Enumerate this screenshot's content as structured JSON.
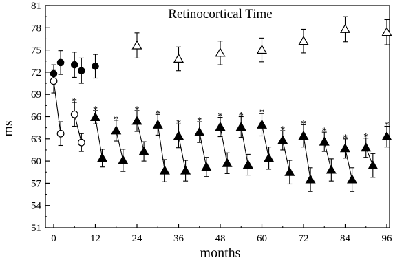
{
  "chart_data": {
    "type": "scatter",
    "title": "Retinocortical Time",
    "xlabel": "months",
    "ylabel": "ms",
    "xlim": [
      -1,
      97
    ],
    "ylim": [
      51,
      81
    ],
    "x_ticks": [
      0,
      12,
      24,
      36,
      48,
      60,
      72,
      84,
      96
    ],
    "y_ticks": [
      51,
      54,
      57,
      60,
      63,
      66,
      69,
      72,
      75,
      78,
      81
    ],
    "grid": false,
    "series": [
      {
        "marker": "filled-circle",
        "points": [
          {
            "x": 0,
            "y": 71.8,
            "err": 1.2
          },
          {
            "x": 2,
            "y": 73.3,
            "err": 1.6
          },
          {
            "x": 6,
            "y": 73.0,
            "err": 1.7
          },
          {
            "x": 8,
            "y": 72.2,
            "err": 1.7
          },
          {
            "x": 12,
            "y": 72.8,
            "err": 1.6
          }
        ]
      },
      {
        "marker": "open-circle",
        "connected": "pairs",
        "points": [
          {
            "x": 0,
            "y": 70.8,
            "err": 1.6
          },
          {
            "x": 2,
            "y": 63.7,
            "err": 1.6
          },
          {
            "x": 6,
            "y": 66.3,
            "err": 1.6
          },
          {
            "x": 8,
            "y": 62.5,
            "err": 1.2
          }
        ]
      },
      {
        "marker": "open-triangle",
        "points": [
          {
            "x": 24,
            "y": 75.6,
            "err": 1.7
          },
          {
            "x": 36,
            "y": 73.8,
            "err": 1.6
          },
          {
            "x": 48,
            "y": 74.6,
            "err": 1.6
          },
          {
            "x": 60,
            "y": 75.0,
            "err": 1.6
          },
          {
            "x": 72,
            "y": 76.2,
            "err": 1.6
          },
          {
            "x": 84,
            "y": 77.8,
            "err": 1.7
          },
          {
            "x": 96,
            "y": 77.4,
            "err": 1.7
          }
        ]
      },
      {
        "marker": "filled-triangle",
        "connected": "pairs",
        "points": [
          {
            "x": 12,
            "y": 65.9,
            "err": 0.9
          },
          {
            "x": 14,
            "y": 60.4,
            "err": 1.2
          },
          {
            "x": 18,
            "y": 64.1,
            "err": 1.4
          },
          {
            "x": 20,
            "y": 60.1,
            "err": 1.5
          },
          {
            "x": 24,
            "y": 65.4,
            "err": 1.4
          },
          {
            "x": 26,
            "y": 61.3,
            "err": 1.3
          },
          {
            "x": 30,
            "y": 64.9,
            "err": 1.4
          },
          {
            "x": 32,
            "y": 58.7,
            "err": 1.5
          },
          {
            "x": 36,
            "y": 63.4,
            "err": 1.6
          },
          {
            "x": 38,
            "y": 58.7,
            "err": 1.4
          },
          {
            "x": 42,
            "y": 63.9,
            "err": 1.4
          },
          {
            "x": 44,
            "y": 59.2,
            "err": 1.3
          },
          {
            "x": 48,
            "y": 64.6,
            "err": 1.3
          },
          {
            "x": 50,
            "y": 59.7,
            "err": 1.4
          },
          {
            "x": 54,
            "y": 64.6,
            "err": 1.4
          },
          {
            "x": 56,
            "y": 59.5,
            "err": 1.4
          },
          {
            "x": 60,
            "y": 64.9,
            "err": 1.5
          },
          {
            "x": 62,
            "y": 60.4,
            "err": 1.5
          },
          {
            "x": 66,
            "y": 62.8,
            "err": 1.3
          },
          {
            "x": 68,
            "y": 58.5,
            "err": 1.6
          },
          {
            "x": 72,
            "y": 63.4,
            "err": 1.5
          },
          {
            "x": 74,
            "y": 57.5,
            "err": 1.6
          },
          {
            "x": 78,
            "y": 62.6,
            "err": 1.3
          },
          {
            "x": 80,
            "y": 58.8,
            "err": 1.5
          },
          {
            "x": 84,
            "y": 61.7,
            "err": 1.3
          },
          {
            "x": 86,
            "y": 57.5,
            "err": 1.6
          },
          {
            "x": 90,
            "y": 61.8,
            "err": 1.3
          },
          {
            "x": 92,
            "y": 59.4,
            "err": 1.6
          },
          {
            "x": 96,
            "y": 63.3,
            "err": 1.4
          }
        ]
      }
    ],
    "annotations": [
      {
        "text": "*",
        "x": 6
      },
      {
        "text": "*",
        "x": 12
      },
      {
        "text": "*",
        "x": 18
      },
      {
        "text": "*",
        "x": 24
      },
      {
        "text": "*",
        "x": 30
      },
      {
        "text": "*",
        "x": 36
      },
      {
        "text": "*",
        "x": 42
      },
      {
        "text": "*",
        "x": 48
      },
      {
        "text": "*",
        "x": 54
      },
      {
        "text": "*",
        "x": 60
      },
      {
        "text": "*",
        "x": 66
      },
      {
        "text": "*",
        "x": 72
      },
      {
        "text": "*",
        "x": 78
      },
      {
        "text": "*",
        "x": 84
      },
      {
        "text": "*",
        "x": 90
      },
      {
        "text": "*",
        "x": 96
      }
    ]
  }
}
